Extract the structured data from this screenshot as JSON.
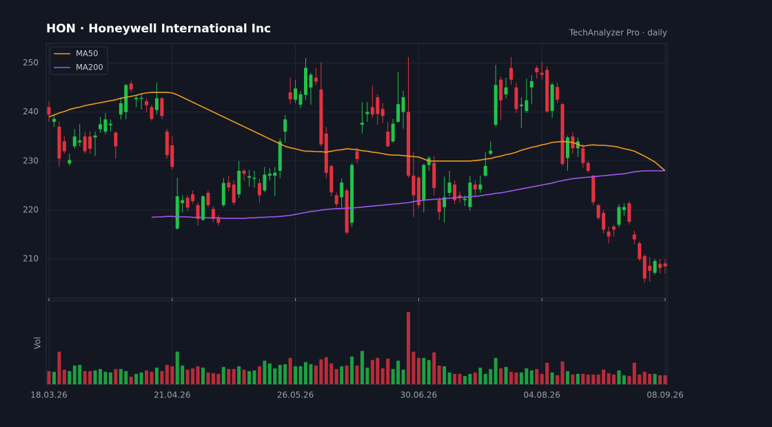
{
  "chart_data": {
    "type": "candlestick",
    "title": "HON  ·  Honeywell International Inc",
    "subtitle": "TechAnalyzer Pro · daily",
    "categories": [
      "18.03.26",
      null,
      null,
      null,
      null,
      null,
      null,
      null,
      null,
      null,
      null,
      null,
      null,
      null,
      null,
      null,
      null,
      null,
      null,
      null,
      null,
      null,
      null,
      null,
      "21.04.26",
      null,
      null,
      null,
      null,
      null,
      null,
      null,
      null,
      null,
      null,
      null,
      null,
      null,
      null,
      null,
      null,
      null,
      null,
      null,
      null,
      null,
      null,
      null,
      "26.05.26",
      null,
      null,
      null,
      null,
      null,
      null,
      null,
      null,
      null,
      null,
      null,
      null,
      null,
      null,
      null,
      null,
      null,
      null,
      null,
      null,
      null,
      null,
      null,
      "30.06.26",
      null,
      null,
      null,
      null,
      null,
      null,
      null,
      null,
      null,
      null,
      null,
      null,
      null,
      null,
      null,
      null,
      null,
      null,
      null,
      null,
      null,
      null,
      null,
      "04.08.26",
      null,
      null,
      null,
      null,
      null,
      null,
      null,
      null,
      null,
      null,
      null,
      null,
      null,
      null,
      null,
      null,
      null,
      null,
      null,
      null,
      null,
      null,
      null,
      "08.09.26"
    ],
    "open": [
      241,
      238,
      237,
      234,
      229.5,
      233,
      233.8,
      235,
      235,
      234.8,
      236.5,
      236,
      237.3,
      235.8,
      239.5,
      240,
      245.8,
      242.6,
      242.7,
      242.2,
      241,
      240.4,
      242.8,
      236,
      233.2,
      216.2,
      221.4,
      222.5,
      223.2,
      221,
      218,
      223.5,
      220.2,
      218.5,
      221,
      225.6,
      225.2,
      223.2,
      228,
      226.6,
      226.4,
      225.5,
      224,
      227,
      227,
      228,
      236,
      244,
      242.5,
      241.5,
      243.5,
      245,
      247,
      244.6,
      235.6,
      229,
      223,
      222.6,
      224,
      217.4,
      232,
      237.4,
      239.6,
      241,
      243,
      240.6,
      236,
      234,
      238,
      240,
      240,
      227,
      226.6,
      222,
      229.2,
      229.6,
      222,
      220.6,
      223.5,
      225.2,
      223,
      222,
      220.6,
      225.2,
      224.2,
      227,
      231.5,
      237.4,
      246.6,
      243.6,
      249,
      245,
      241.2,
      240.2,
      245,
      249,
      248,
      248.6,
      240.2,
      245.1,
      241.6,
      230.6,
      235,
      232.6,
      232.6,
      229.6,
      227,
      221,
      219.4,
      215.6,
      216.6,
      217,
      220,
      221.4,
      215,
      213.2,
      210.6,
      208.6,
      207.2,
      209,
      209.1
    ],
    "high": [
      242.2,
      239.5,
      238,
      235,
      231.5,
      236.5,
      237.5,
      236,
      236,
      236,
      239,
      239.8,
      238.5,
      236,
      243,
      245.8,
      246.4,
      243.5,
      243.8,
      242.8,
      241.5,
      246,
      243,
      236.5,
      235,
      226.6,
      223,
      223,
      224,
      221.5,
      223,
      224,
      220.8,
      219,
      226.5,
      227,
      226,
      230,
      228.4,
      228.2,
      228,
      226.4,
      228.8,
      228.5,
      228.8,
      234.6,
      239.4,
      247,
      246.5,
      244.3,
      251,
      248,
      249,
      250.2,
      237,
      229.2,
      223.6,
      226.4,
      224.4,
      229.6,
      232.8,
      242,
      242,
      245.4,
      243.6,
      241.8,
      238,
      238.6,
      248.2,
      244.3,
      251.2,
      231.8,
      227,
      229.4,
      231,
      231,
      222.6,
      226.8,
      228,
      226,
      223.8,
      223,
      227,
      226,
      227,
      231.8,
      234,
      249.6,
      247.2,
      247,
      251.2,
      246,
      243,
      246.8,
      247.5,
      249.5,
      250.3,
      249.3,
      246,
      246,
      241.8,
      235.2,
      235.8,
      234.8,
      233.4,
      230,
      227.2,
      221.2,
      220,
      216.6,
      217,
      221.2,
      221.4,
      221.8,
      215.8,
      213.6,
      211,
      210.4,
      210,
      210,
      210
    ],
    "low": [
      238,
      237,
      228.8,
      231.5,
      229,
      232.5,
      233,
      231.5,
      231.5,
      231,
      235.8,
      235.5,
      236,
      230.5,
      238.5,
      238.5,
      244,
      241,
      240.5,
      240,
      238.2,
      239.5,
      238.5,
      230.5,
      228.3,
      216,
      219.5,
      219.8,
      221.3,
      216.8,
      217.8,
      220.6,
      217.5,
      216.8,
      220.6,
      223.8,
      221,
      222.5,
      226,
      224.8,
      224.6,
      221.5,
      223.6,
      226,
      222.8,
      226.5,
      233.8,
      241.6,
      241.8,
      240.8,
      242.5,
      241.5,
      245.5,
      233,
      226.5,
      222.8,
      220.6,
      220.3,
      215,
      216.5,
      229.6,
      235.6,
      238,
      238.8,
      237.4,
      237.8,
      232.8,
      233.7,
      237.8,
      236.6,
      226.6,
      218.6,
      220.4,
      219.5,
      228,
      223,
      218,
      217.4,
      222.8,
      221.2,
      221.5,
      220.8,
      219.8,
      222.6,
      223.5,
      226.8,
      231.2,
      237,
      238.3,
      242.8,
      245.6,
      239.8,
      236.7,
      239.8,
      241.6,
      246.8,
      246.6,
      239.8,
      238.8,
      241.8,
      229,
      228,
      231.5,
      230.8,
      228.6,
      227.6,
      221,
      218,
      215.2,
      213.2,
      214.6,
      216.4,
      218.8,
      217,
      213,
      209.6,
      205.2,
      205.4,
      206.8,
      207,
      207
    ],
    "close": [
      239.5,
      238.6,
      230.5,
      232,
      230.2,
      235,
      234.2,
      232,
      232.5,
      235.2,
      237.5,
      238.5,
      237.6,
      233,
      241.8,
      245.5,
      244.6,
      242.9,
      242.9,
      241.4,
      238.6,
      242.8,
      239.2,
      231.2,
      228.8,
      222.8,
      222,
      220.5,
      221.8,
      218.2,
      222.8,
      221,
      218.2,
      217.4,
      225.5,
      224.6,
      221.5,
      228,
      227.4,
      226.9,
      226.6,
      223,
      227.2,
      227.4,
      227.6,
      234,
      238.5,
      242.6,
      244.8,
      243.6,
      249,
      247.6,
      246.2,
      233.4,
      227.6,
      223.6,
      221.2,
      225.6,
      215.4,
      229.2,
      230.4,
      237.8,
      240,
      239.5,
      239.6,
      239.2,
      233,
      237.6,
      241.6,
      243,
      227,
      223,
      221,
      229.2,
      230.6,
      224.5,
      219.6,
      222.6,
      225.6,
      222,
      222.4,
      222.3,
      225.6,
      224.2,
      225.2,
      229,
      232.1,
      245.5,
      242.4,
      245,
      246.6,
      240.6,
      241.5,
      242.4,
      246.3,
      248.1,
      247.6,
      240.1,
      245.6,
      242.5,
      229.4,
      234.8,
      232.6,
      234,
      229.6,
      228,
      221.6,
      218.4,
      216,
      214.6,
      216,
      220.6,
      220.6,
      217.6,
      214,
      210,
      206,
      207.6,
      209.6,
      208.2,
      208.5
    ],
    "up_color": "#22c24a",
    "down_color": "#e3323f",
    "series": [
      {
        "name": "MA50",
        "color": "#f29d1c",
        "values": [
          239,
          239.4,
          239.8,
          240.1,
          240.5,
          240.8,
          241,
          241.3,
          241.5,
          241.7,
          241.9,
          242.1,
          242.3,
          242.5,
          242.8,
          243,
          243.2,
          243.4,
          243.7,
          243.9,
          244,
          244,
          244,
          244,
          243.9,
          243.5,
          243,
          242.5,
          242,
          241.5,
          241,
          240.5,
          240,
          239.5,
          239,
          238.5,
          238,
          237.5,
          237,
          236.5,
          236,
          235.5,
          235,
          234.5,
          234,
          233.5,
          233,
          232.7,
          232.5,
          232.2,
          232,
          232,
          231.9,
          231.9,
          231.8,
          232,
          232.2,
          232.3,
          232.5,
          232.4,
          232.3,
          232.1,
          232,
          231.8,
          231.7,
          231.5,
          231.3,
          231.2,
          231.2,
          231.1,
          231,
          230.9,
          230.8,
          230.4,
          230,
          230,
          230,
          230,
          230,
          230,
          230,
          230,
          230,
          230.1,
          230.2,
          230.4,
          230.5,
          230.8,
          231,
          231.3,
          231.5,
          231.8,
          232.2,
          232.5,
          232.8,
          233,
          233.3,
          233.5,
          233.8,
          233.9,
          234,
          233.9,
          233.8,
          233.4,
          233,
          233.2,
          233.3,
          233.2,
          233.2,
          233.1,
          233,
          232.8,
          232.5,
          232.3,
          232,
          231.5,
          231,
          230.4,
          229.8,
          228.9,
          228
        ]
      },
      {
        "name": "MA200",
        "color": "#a457f0",
        "values": [
          null,
          null,
          null,
          null,
          null,
          null,
          null,
          null,
          null,
          null,
          null,
          null,
          null,
          null,
          null,
          null,
          null,
          null,
          null,
          null,
          218.5,
          218.6,
          218.6,
          218.7,
          218.7,
          218.6,
          218.6,
          218.6,
          218.5,
          218.5,
          218.5,
          218.4,
          218.4,
          218.4,
          218.3,
          218.3,
          218.3,
          218.3,
          218.3,
          218.4,
          218.4,
          218.5,
          218.5,
          218.6,
          218.6,
          218.7,
          218.8,
          218.9,
          219.1,
          219.3,
          219.5,
          219.7,
          219.8,
          220,
          220.1,
          220.2,
          220.3,
          220.3,
          220.4,
          220.4,
          220.5,
          220.6,
          220.7,
          220.8,
          220.9,
          221,
          221.1,
          221.2,
          221.3,
          221.4,
          221.5,
          221.7,
          221.9,
          222,
          222.1,
          222.2,
          222.2,
          222.3,
          222.4,
          222.5,
          222.6,
          222.6,
          222.7,
          222.8,
          222.9,
          223.1,
          223.2,
          223.4,
          223.5,
          223.7,
          223.9,
          224.1,
          224.3,
          224.5,
          224.7,
          224.9,
          225.1,
          225.3,
          225.5,
          225.8,
          226,
          226.2,
          226.4,
          226.5,
          226.6,
          226.7,
          226.8,
          226.9,
          227,
          227.1,
          227.2,
          227.3,
          227.4,
          227.6,
          227.8,
          227.9,
          228,
          228,
          228,
          228,
          228
        ]
      }
    ],
    "ylim": [
      202,
      254
    ],
    "yticks": [
      210,
      220,
      230,
      240,
      250
    ],
    "grid": true,
    "legend": "upper left",
    "volume": {
      "label": "Vol",
      "ylim": [
        0,
        12
      ],
      "values": [
        1.9,
        1.8,
        4.7,
        2.1,
        1.9,
        2.7,
        2.8,
        1.9,
        1.9,
        2.0,
        2.2,
        1.8,
        1.7,
        2.2,
        2.2,
        1.9,
        1.1,
        1.5,
        1.7,
        2.0,
        1.8,
        2.4,
        1.9,
        2.8,
        2.6,
        4.7,
        2.7,
        2.1,
        2.3,
        2.6,
        2.4,
        1.7,
        1.6,
        1.5,
        2.5,
        2.2,
        2.2,
        2.6,
        2.1,
        1.9,
        2.0,
        2.6,
        3.4,
        3.0,
        2.3,
        2.8,
        2.9,
        3.8,
        2.6,
        2.6,
        3.2,
        2.9,
        2.7,
        3.6,
        3.9,
        3.0,
        2.2,
        2.6,
        2.7,
        4.0,
        2.7,
        4.8,
        2.4,
        3.5,
        3.8,
        2.3,
        3.7,
        2.2,
        3.4,
        2.1,
        10.4,
        4.7,
        3.8,
        3.8,
        3.5,
        4.6,
        2.7,
        2.6,
        1.7,
        1.5,
        1.5,
        1.2,
        1.5,
        1.7,
        2.4,
        1.5,
        2.2,
        3.8,
        2.3,
        2.5,
        1.8,
        1.7,
        1.7,
        2.3,
        2.0,
        2.2,
        1.5,
        3.1,
        1.7,
        1.3,
        3.3,
        1.9,
        1.4,
        1.5,
        1.5,
        1.4,
        1.4,
        1.4,
        2.1,
        1.6,
        1.4,
        2.0,
        1.3,
        1.2,
        3.1,
        1.4,
        1.8,
        1.5,
        1.5,
        1.3,
        1.3
      ]
    }
  }
}
